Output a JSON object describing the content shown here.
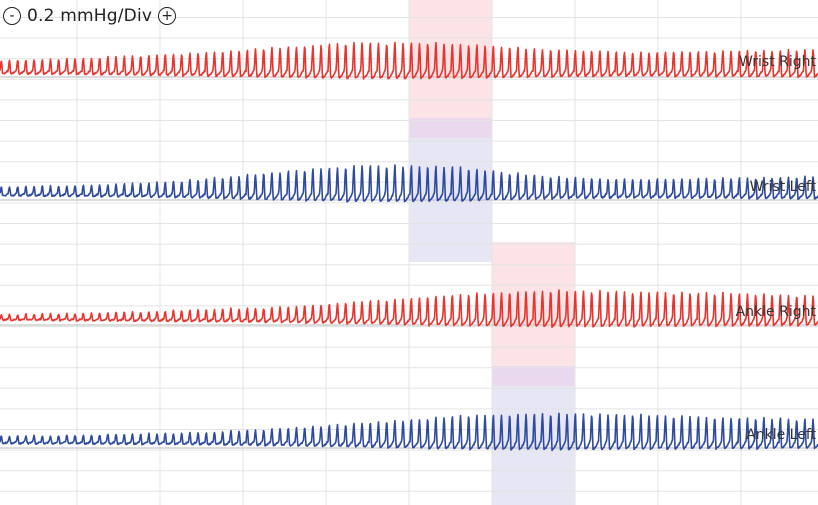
{
  "scale": {
    "minus_label": "-",
    "value_label": "0.2 mmHg/Div",
    "plus_label": "+"
  },
  "colors": {
    "grid": "#e4e4e4",
    "baseline": "#b8b8b8",
    "right_trace": "#e8342e",
    "left_trace": "#2f4a9e",
    "highlight_red": "#fbe3e6",
    "highlight_purple": "#ead9ee",
    "highlight_blue": "#e6e6f5"
  },
  "channels": [
    {
      "id": "wrist-right",
      "label": "Wrist Right",
      "color_key": "right_trace",
      "activity": [
        0.35,
        0.45,
        0.6,
        0.8,
        1.0,
        0.95,
        0.75,
        0.65,
        0.7,
        0.75
      ],
      "period": 8.2
    },
    {
      "id": "wrist-left",
      "label": "Wrist Left",
      "color_key": "left_trace",
      "activity": [
        0.25,
        0.3,
        0.45,
        0.75,
        1.0,
        0.95,
        0.6,
        0.5,
        0.55,
        0.6
      ],
      "period": 8.2
    },
    {
      "id": "ankle-right",
      "label": "Ankle Right",
      "color_key": "right_trace",
      "activity": [
        0.15,
        0.2,
        0.3,
        0.4,
        0.6,
        0.85,
        1.0,
        0.95,
        0.9,
        0.8
      ],
      "period": 8.2
    },
    {
      "id": "ankle-left",
      "label": "Ankle Left",
      "color_key": "left_trace",
      "activity": [
        0.2,
        0.25,
        0.3,
        0.45,
        0.65,
        0.9,
        1.0,
        0.95,
        0.85,
        0.8
      ],
      "period": 8.2
    }
  ]
}
